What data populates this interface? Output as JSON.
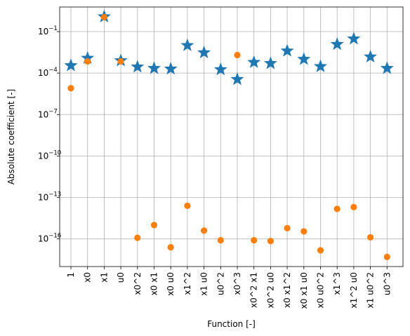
{
  "chart_data": {
    "type": "scatter",
    "title": "",
    "xlabel": "Function [-]",
    "ylabel": "Absolute coefficient [-]",
    "y_scale": "log",
    "ylim": [
      1e-18,
      6
    ],
    "grid": true,
    "legend": "none",
    "categories": [
      "1",
      "x0",
      "x1",
      "u0",
      "x0^2",
      "x0 x1",
      "x0 u0",
      "x1^2",
      "x1 u0",
      "u0^2",
      "x0^3",
      "x0^2 x1",
      "x0^2 u0",
      "x0 x1^2",
      "x0 x1 u0",
      "x0 u0^2",
      "x1^3",
      "x1^2 u0",
      "x1 u0^2",
      "u0^3"
    ],
    "y_ticks": [
      {
        "value": 1e-16,
        "base": "10",
        "exp": "−16"
      },
      {
        "value": 1e-13,
        "base": "10",
        "exp": "−13"
      },
      {
        "value": 1e-10,
        "base": "10",
        "exp": "−10"
      },
      {
        "value": 1e-07,
        "base": "10",
        "exp": "−7"
      },
      {
        "value": 0.0001,
        "base": "10",
        "exp": "−4"
      },
      {
        "value": 0.1,
        "base": "10",
        "exp": "−1"
      }
    ],
    "series": [
      {
        "marker": "star",
        "color": "#1f77b4",
        "values": [
          0.00035,
          0.0012,
          1.2,
          0.0008,
          0.00028,
          0.00022,
          0.0002,
          0.01,
          0.003,
          0.00018,
          3.5e-05,
          0.0006,
          0.0005,
          0.004,
          0.001,
          0.0003,
          0.012,
          0.03,
          0.0015,
          0.00022
        ]
      },
      {
        "marker": "circle",
        "color": "#ff7f0e",
        "values": [
          8e-06,
          0.0007,
          1.1,
          0.0007,
          1.2e-16,
          1e-15,
          2.5e-17,
          2.5e-14,
          4e-16,
          8e-17,
          0.002,
          8e-17,
          7e-17,
          6e-16,
          3.5e-16,
          1.5e-17,
          1.5e-14,
          2e-14,
          1.3e-16,
          5e-18
        ]
      }
    ]
  }
}
